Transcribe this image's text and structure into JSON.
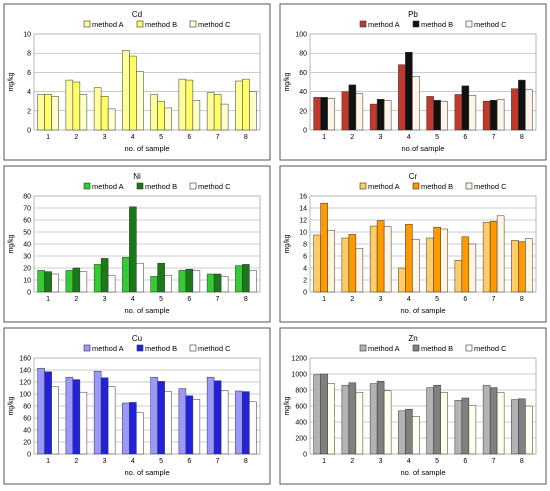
{
  "chart_data": [
    {
      "type": "bar",
      "title": "Cd",
      "xlabel": "no. of sample",
      "ylabel": "mg/kg",
      "ylim": [
        0,
        10
      ],
      "yticks": [
        0,
        2,
        4,
        6,
        8,
        10
      ],
      "categories": [
        "1",
        "2",
        "3",
        "4",
        "5",
        "6",
        "7",
        "8"
      ],
      "legend": "top",
      "series": [
        {
          "name": "method A",
          "color": "#ffff99",
          "values": [
            3.7,
            5.2,
            4.4,
            8.3,
            3.7,
            5.3,
            3.9,
            5.1
          ]
        },
        {
          "name": "method B",
          "color": "#ffff66",
          "values": [
            3.7,
            5.0,
            3.5,
            7.7,
            3.0,
            5.2,
            3.7,
            5.3
          ]
        },
        {
          "name": "method C",
          "color": "#ffffcc",
          "values": [
            3.5,
            3.7,
            2.2,
            6.1,
            2.3,
            3.1,
            2.7,
            4.0
          ]
        }
      ]
    },
    {
      "type": "bar",
      "title": "Pb",
      "xlabel": "no.of sample",
      "ylabel": "mg/kg",
      "ylim": [
        0,
        100
      ],
      "yticks": [
        0,
        20,
        40,
        60,
        80,
        100
      ],
      "categories": [
        "1",
        "2",
        "3",
        "4",
        "5",
        "6",
        "7",
        "8"
      ],
      "legend": "top",
      "series": [
        {
          "name": "method A",
          "color": "#c0392b",
          "values": [
            34,
            40,
            27,
            68,
            35,
            37,
            30,
            43
          ]
        },
        {
          "name": "method B",
          "color": "#111111",
          "values": [
            34,
            47,
            32,
            81,
            31,
            46,
            31,
            52
          ]
        },
        {
          "name": "method C",
          "color": "#fdf5e6",
          "values": [
            33,
            38,
            31,
            56,
            30,
            36,
            32,
            42
          ]
        }
      ]
    },
    {
      "type": "bar",
      "title": "Ni",
      "xlabel": "no. of sample",
      "ylabel": "mg/kg",
      "ylim": [
        0,
        80
      ],
      "yticks": [
        0,
        10,
        20,
        30,
        40,
        50,
        60,
        70,
        80
      ],
      "categories": [
        "1",
        "2",
        "3",
        "4",
        "5",
        "6",
        "7",
        "8"
      ],
      "legend": "top",
      "series": [
        {
          "name": "method A",
          "color": "#33cc33",
          "values": [
            18,
            18,
            23,
            29,
            13,
            18,
            15,
            22
          ]
        },
        {
          "name": "method B",
          "color": "#1a7a1a",
          "values": [
            17,
            20,
            28,
            71,
            24,
            19,
            15,
            23
          ]
        },
        {
          "name": "method C",
          "color": "#ffffff",
          "values": [
            15,
            17,
            14,
            24,
            14,
            18,
            13,
            18
          ]
        }
      ]
    },
    {
      "type": "bar",
      "title": "Cr",
      "xlabel": "no. of sample",
      "ylabel": "mg/kg",
      "ylim": [
        0,
        16
      ],
      "yticks": [
        0,
        2,
        4,
        6,
        8,
        10,
        12,
        14,
        16
      ],
      "categories": [
        "1",
        "2",
        "3",
        "4",
        "5",
        "6",
        "7",
        "8"
      ],
      "legend": "top",
      "series": [
        {
          "name": "method A",
          "color": "#ffcc66",
          "values": [
            9.5,
            9.0,
            11.0,
            4.0,
            9.0,
            5.3,
            11.6,
            8.6
          ]
        },
        {
          "name": "method B",
          "color": "#ff9900",
          "values": [
            14.8,
            9.6,
            11.9,
            11.3,
            10.8,
            9.2,
            11.8,
            8.4
          ]
        },
        {
          "name": "method C",
          "color": "#fff5e0",
          "values": [
            10.3,
            7.3,
            10.9,
            8.8,
            10.5,
            8.0,
            12.7,
            8.9
          ]
        }
      ]
    },
    {
      "type": "bar",
      "title": "Cu",
      "xlabel": "no. of sample",
      "ylabel": "mg/kg",
      "ylim": [
        0,
        160
      ],
      "yticks": [
        0,
        20,
        40,
        60,
        80,
        100,
        120,
        140,
        160
      ],
      "categories": [
        "1",
        "2",
        "3",
        "4",
        "5",
        "6",
        "7",
        "8"
      ],
      "legend": "top",
      "series": [
        {
          "name": "method A",
          "color": "#9999ff",
          "values": [
            143,
            128,
            138,
            85,
            128,
            109,
            128,
            105
          ]
        },
        {
          "name": "method B",
          "color": "#2222dd",
          "values": [
            137,
            124,
            127,
            86,
            121,
            97,
            122,
            104
          ]
        },
        {
          "name": "method C",
          "color": "#ffffff",
          "values": [
            112,
            103,
            112,
            69,
            104,
            91,
            106,
            87
          ]
        }
      ]
    },
    {
      "type": "bar",
      "title": "Zn",
      "xlabel": "no. of sample",
      "ylabel": "mg/kg",
      "ylim": [
        0,
        1200
      ],
      "yticks": [
        0,
        200,
        400,
        600,
        800,
        1000,
        1200
      ],
      "categories": [
        "1",
        "2",
        "3",
        "4",
        "5",
        "6",
        "7",
        "8"
      ],
      "legend": "top",
      "series": [
        {
          "name": "method A",
          "color": "#b3b3b3",
          "values": [
            990,
            860,
            880,
            540,
            830,
            670,
            860,
            680
          ]
        },
        {
          "name": "method B",
          "color": "#808080",
          "values": [
            1000,
            890,
            910,
            560,
            860,
            700,
            830,
            690
          ]
        },
        {
          "name": "method C",
          "color": "#ffffee",
          "values": [
            880,
            770,
            790,
            470,
            770,
            610,
            770,
            600
          ]
        }
      ]
    }
  ]
}
